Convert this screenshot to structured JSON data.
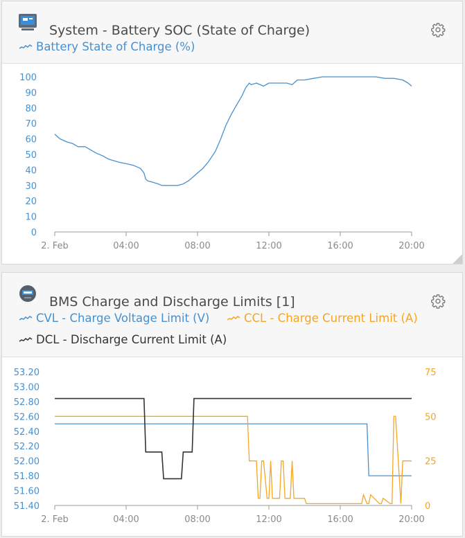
{
  "panels": [
    {
      "title": "System - Battery SOC (State of Charge)",
      "legend": [
        {
          "label": "Battery State of Charge (%)",
          "color": "#4790d0"
        }
      ]
    },
    {
      "title": "BMS Charge and Discharge Limits [1]",
      "legend": [
        {
          "label": "CVL - Charge Voltage Limit (V)",
          "color": "#4790d0"
        },
        {
          "label": "CCL - Charge Current Limit (A)",
          "color": "#f5a623"
        },
        {
          "label": "DCL - Discharge Current Limit (A)",
          "color": "#333333"
        }
      ]
    }
  ],
  "icons": {
    "panel1_icon": "gx-device-icon",
    "panel2_icon": "bms-device-icon",
    "settings": "gear-icon"
  },
  "chart_data": [
    {
      "type": "line",
      "title": "System - Battery SOC (State of Charge)",
      "x_ticks": [
        "2. Feb",
        "04:00",
        "08:00",
        "12:00",
        "16:00",
        "20:00"
      ],
      "x_range_hours": [
        0,
        20
      ],
      "y_ticks": [
        0,
        10,
        20,
        30,
        40,
        50,
        60,
        70,
        80,
        90,
        100
      ],
      "ylim": [
        0,
        100
      ],
      "series": [
        {
          "name": "Battery State of Charge (%)",
          "color": "#4790d0",
          "x": [
            0,
            0.3,
            0.7,
            1.0,
            1.3,
            1.7,
            2.0,
            2.3,
            2.7,
            3.0,
            3.3,
            3.6,
            4.0,
            4.4,
            4.8,
            5.0,
            5.1,
            5.2,
            5.5,
            5.8,
            6.0,
            6.3,
            6.6,
            6.9,
            7.2,
            7.5,
            7.8,
            8.0,
            8.3,
            8.6,
            9.0,
            9.3,
            9.6,
            9.9,
            10.2,
            10.5,
            10.7,
            10.9,
            11.0,
            11.3,
            11.7,
            12.0,
            12.5,
            13.0,
            13.3,
            13.6,
            14.0,
            14.5,
            15.0,
            16.0,
            17.0,
            18.0,
            18.5,
            19.0,
            19.5,
            19.8,
            20.0
          ],
          "y": [
            63,
            60,
            58,
            57,
            55,
            55,
            53,
            51,
            49,
            47,
            46,
            45,
            44,
            43,
            41,
            38,
            34,
            33,
            32,
            31,
            30,
            30,
            30,
            30,
            31,
            33,
            36,
            38,
            41,
            45,
            52,
            60,
            69,
            76,
            82,
            88,
            93,
            96,
            95,
            96,
            94,
            96,
            96,
            96,
            95,
            98,
            98,
            99,
            100,
            100,
            100,
            100,
            99,
            99,
            98,
            96,
            94
          ]
        }
      ]
    },
    {
      "type": "line",
      "title": "BMS Charge and Discharge Limits [1]",
      "x_ticks": [
        "2. Feb",
        "04:00",
        "08:00",
        "12:00",
        "16:00",
        "20:00"
      ],
      "x_range_hours": [
        0,
        20
      ],
      "y_left_ticks": [
        "51.40",
        "51.60",
        "51.80",
        "52.00",
        "52.20",
        "52.40",
        "52.60",
        "52.80",
        "53.00",
        "53.20"
      ],
      "y_left_range": [
        51.4,
        53.2
      ],
      "y_right_ticks": [
        0,
        25,
        50,
        75
      ],
      "y_right_range": [
        0,
        75
      ],
      "series": [
        {
          "name": "CVL - Charge Voltage Limit (V)",
          "axis": "left",
          "color": "#4790d0",
          "x": [
            0,
            17.5,
            17.6,
            20
          ],
          "y": [
            52.5,
            52.5,
            51.8,
            51.8
          ]
        },
        {
          "name": "CCL - Charge Current Limit (A)",
          "axis": "right",
          "color": "#f5a623",
          "x": [
            0,
            10.8,
            10.9,
            11.1,
            11.3,
            11.4,
            11.5,
            11.6,
            11.7,
            11.9,
            12.0,
            12.1,
            12.2,
            12.3,
            12.6,
            12.7,
            12.8,
            12.9,
            13.1,
            13.2,
            13.3,
            13.4,
            14.0,
            14.1,
            17.1,
            17.2,
            17.3,
            17.5,
            17.6,
            17.7,
            18.2,
            18.3,
            18.4,
            18.8,
            18.9,
            19.0,
            19.1,
            19.4,
            19.5,
            19.8,
            20.0
          ],
          "y": [
            50,
            50,
            25,
            25,
            25,
            4,
            4,
            25,
            25,
            4,
            4,
            25,
            4,
            4,
            4,
            25,
            25,
            4,
            4,
            4,
            25,
            4,
            4,
            1,
            1,
            1,
            6,
            1,
            1,
            6,
            1,
            1,
            4,
            1,
            1,
            50,
            50,
            1,
            25,
            25,
            25
          ]
        },
        {
          "name": "DCL - Discharge Current Limit (A)",
          "axis": "right",
          "color": "#333333",
          "x": [
            0,
            5.0,
            5.1,
            6.0,
            6.1,
            7.1,
            7.2,
            7.7,
            7.8,
            20
          ],
          "y": [
            60,
            60,
            30,
            30,
            15,
            15,
            30,
            30,
            60,
            60
          ]
        }
      ]
    }
  ]
}
